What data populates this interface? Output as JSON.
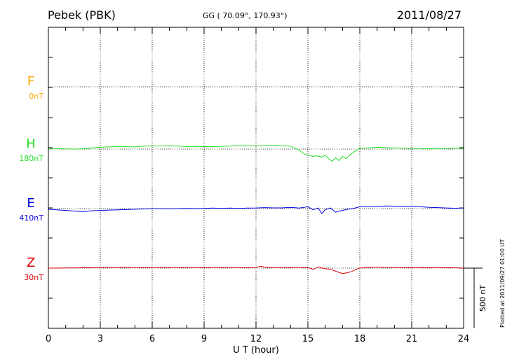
{
  "header": {
    "station": "Pebek (PBK)",
    "coords": "GG ( 70.09°, 170.93°)",
    "date": "2011/08/27",
    "plotted": "Plotted at 2011/09/27 01:00 UT"
  },
  "chart_data": {
    "type": "line",
    "title": "Pebek (PBK)",
    "xlabel": "U T (hour)",
    "ylabel": "",
    "xlim": [
      0,
      24
    ],
    "x_ticks": [
      "0",
      "3",
      "6",
      "9",
      "12",
      "15",
      "18",
      "21",
      "24"
    ],
    "grid": true,
    "scale_bar": "500 nT",
    "series": [
      {
        "name": "F",
        "offset": "0nT",
        "color": "#f5a800",
        "values": []
      },
      {
        "name": "H",
        "offset": "180nT",
        "color": "#22dd22",
        "x": [
          0,
          0.5,
          1,
          1.5,
          2,
          2.5,
          3,
          3.5,
          4,
          4.5,
          5,
          5.5,
          6,
          6.5,
          7,
          7.5,
          8,
          8.5,
          9,
          9.5,
          10,
          10.5,
          11,
          11.5,
          12,
          12.5,
          13,
          13.5,
          14,
          14.2,
          14.5,
          14.8,
          15,
          15.3,
          15.5,
          15.8,
          16,
          16.2,
          16.4,
          16.6,
          16.8,
          17,
          17.2,
          17.4,
          17.6,
          17.8,
          18,
          18.5,
          19,
          19.5,
          20,
          20.5,
          21,
          21.5,
          22,
          22.5,
          23,
          23.5,
          24
        ],
        "values": [
          5,
          4,
          2,
          0,
          3,
          10,
          15,
          18,
          22,
          20,
          18,
          24,
          26,
          26,
          28,
          24,
          20,
          22,
          20,
          20,
          22,
          26,
          28,
          28,
          26,
          28,
          30,
          28,
          24,
          10,
          -10,
          -40,
          -50,
          -60,
          -55,
          -65,
          -50,
          -80,
          -100,
          -70,
          -95,
          -60,
          -80,
          -50,
          -30,
          -10,
          5,
          10,
          15,
          12,
          10,
          8,
          5,
          5,
          3,
          5,
          5,
          8,
          5
        ]
      },
      {
        "name": "E",
        "offset": "410nT",
        "color": "#0000dd",
        "x": [
          0,
          0.5,
          1,
          1.5,
          2,
          2.5,
          3,
          3.5,
          4,
          4.5,
          5,
          5.5,
          6,
          6.5,
          7,
          7.5,
          8,
          8.5,
          9,
          9.5,
          10,
          10.5,
          11,
          11.5,
          12,
          12.5,
          13,
          13.5,
          14,
          14.5,
          15,
          15.3,
          15.6,
          15.8,
          16,
          16.3,
          16.6,
          16.8,
          17,
          17.3,
          17.6,
          18,
          18.5,
          19,
          19.5,
          20,
          20.5,
          21,
          21.5,
          22,
          22.5,
          23,
          23.5,
          24
        ],
        "values": [
          -5,
          -10,
          -15,
          -20,
          -25,
          -18,
          -15,
          -12,
          -10,
          -8,
          -5,
          -3,
          0,
          0,
          -2,
          0,
          2,
          0,
          2,
          4,
          2,
          4,
          2,
          4,
          5,
          8,
          6,
          6,
          10,
          4,
          15,
          -10,
          5,
          -40,
          -10,
          5,
          -30,
          -20,
          -15,
          -5,
          0,
          15,
          15,
          18,
          22,
          20,
          18,
          20,
          15,
          10,
          8,
          5,
          3,
          5
        ]
      },
      {
        "name": "Z",
        "offset": "30nT",
        "color": "#dd0000",
        "x": [
          0,
          0.5,
          1,
          1.5,
          2,
          2.5,
          3,
          3.5,
          4,
          4.5,
          5,
          5.5,
          6,
          6.5,
          7,
          7.5,
          8,
          8.5,
          9,
          9.5,
          10,
          10.5,
          11,
          11.5,
          12,
          12.3,
          12.6,
          13,
          13.5,
          14,
          14.5,
          15,
          15.3,
          15.6,
          16,
          16.3,
          16.6,
          16.8,
          17,
          17.2,
          17.5,
          17.8,
          18,
          18.5,
          19,
          19.5,
          20,
          20.5,
          21,
          21.5,
          22,
          22.5,
          23,
          23.5,
          24
        ],
        "values": [
          0,
          0,
          2,
          2,
          3,
          3,
          5,
          5,
          5,
          6,
          5,
          5,
          6,
          5,
          5,
          5,
          5,
          4,
          5,
          5,
          5,
          5,
          4,
          4,
          5,
          15,
          5,
          5,
          5,
          5,
          5,
          5,
          -10,
          8,
          -5,
          -10,
          -25,
          -35,
          -45,
          -40,
          -30,
          -10,
          0,
          5,
          8,
          6,
          5,
          5,
          4,
          5,
          3,
          5,
          3,
          3,
          0
        ]
      }
    ]
  }
}
